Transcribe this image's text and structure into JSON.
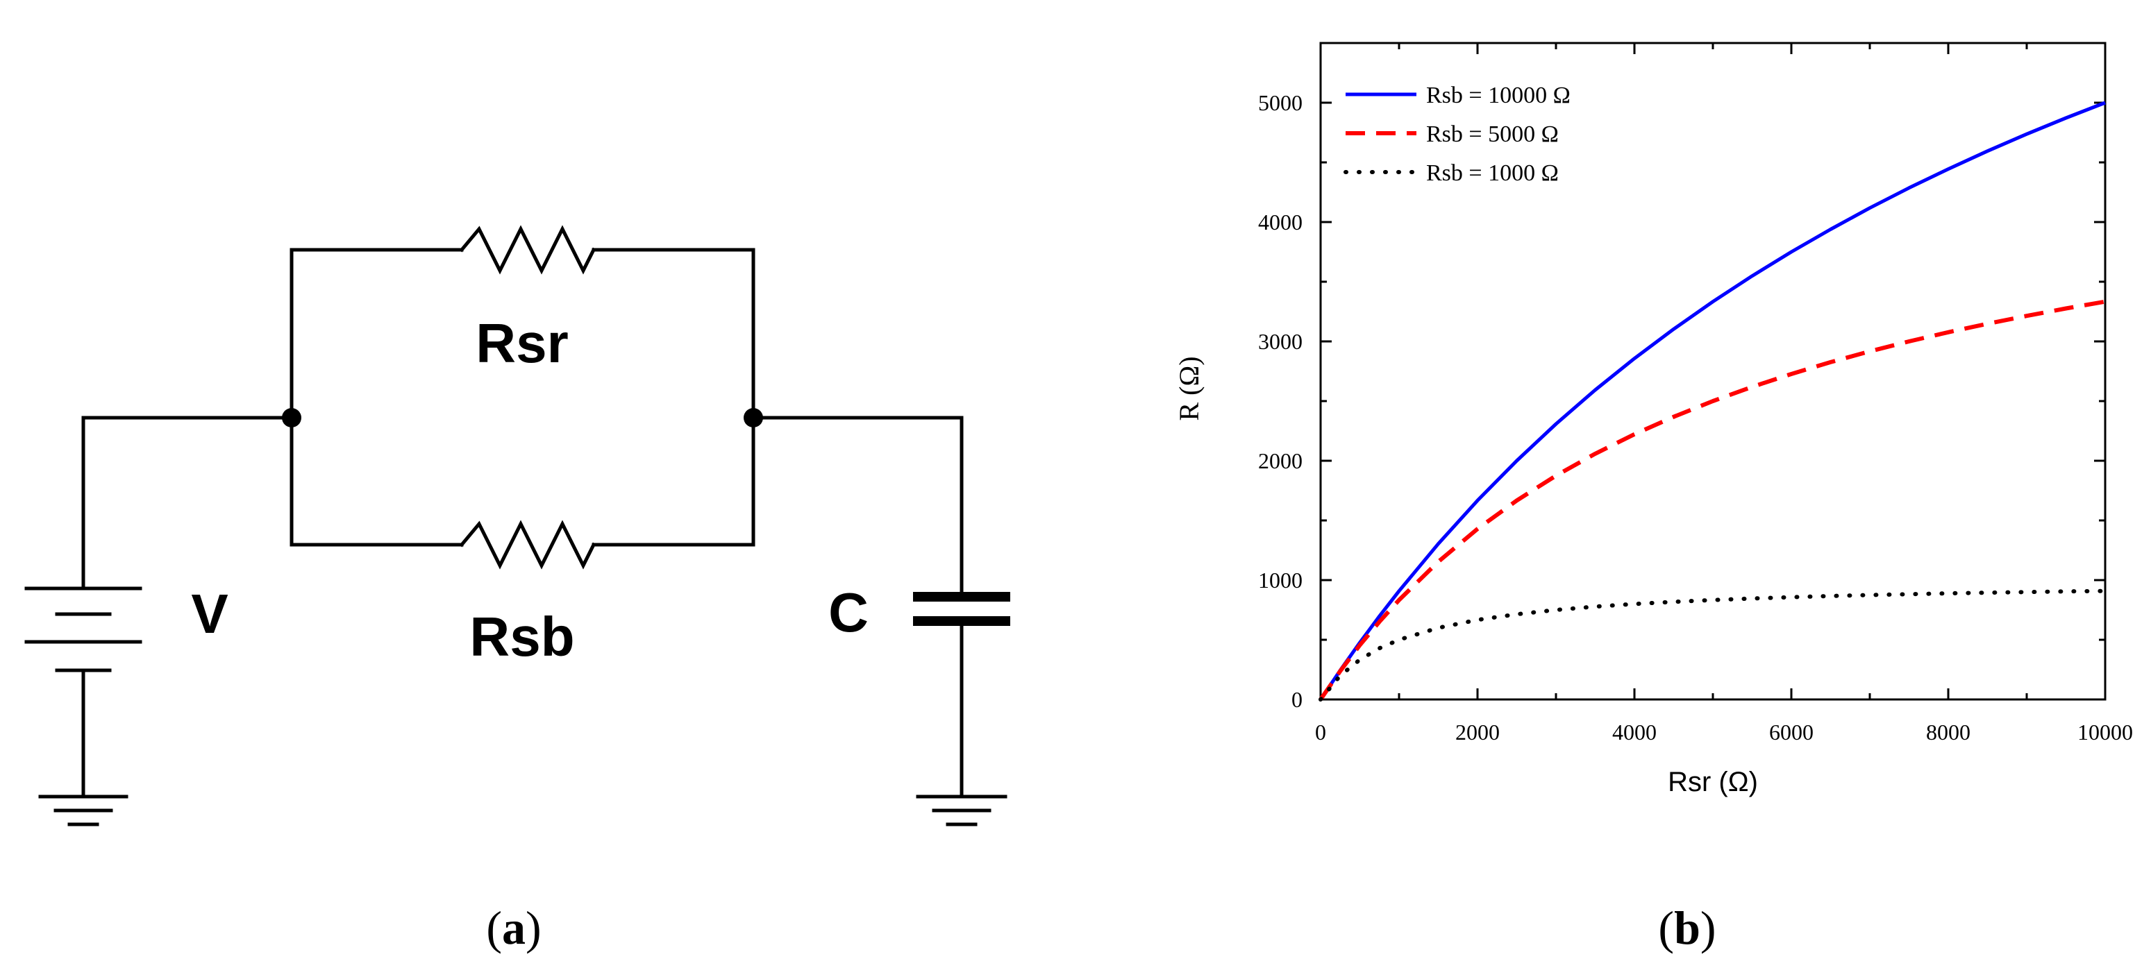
{
  "circuit": {
    "resistor_top_label": "Rsr",
    "resistor_bottom_label": "Rsb",
    "source_label": "V",
    "capacitor_label": "C"
  },
  "captions": {
    "a_open": "(",
    "a_letter": "a",
    "a_close": ")",
    "b_open": "(",
    "b_letter": "b",
    "b_close": ")"
  },
  "chart_data": {
    "type": "line",
    "title": "",
    "xlabel": "Rsr (Ω)",
    "ylabel": "R (Ω)",
    "xlim": [
      0,
      10000
    ],
    "ylim": [
      0,
      5500
    ],
    "x_ticks": [
      0,
      2000,
      4000,
      6000,
      8000,
      10000
    ],
    "y_ticks": [
      0,
      1000,
      2000,
      3000,
      4000,
      5000
    ],
    "grid": false,
    "legend_position": "top-left",
    "x": [
      0,
      250,
      500,
      750,
      1000,
      1500,
      2000,
      2500,
      3000,
      3500,
      4000,
      4500,
      5000,
      5500,
      6000,
      6500,
      7000,
      7500,
      8000,
      8500,
      9000,
      9500,
      10000
    ],
    "series": [
      {
        "name": "Rsb = 10000 Ω",
        "color": "#0000ff",
        "style": "solid",
        "values": [
          0,
          244,
          476,
          698,
          909,
          1304,
          1667,
          2000,
          2308,
          2593,
          2857,
          3103,
          3333,
          3548,
          3750,
          3939,
          4118,
          4286,
          4444,
          4595,
          4737,
          4872,
          5000
        ]
      },
      {
        "name": "Rsb = 5000 Ω",
        "color": "#ff0000",
        "style": "dashed",
        "values": [
          0,
          238,
          455,
          652,
          833,
          1154,
          1429,
          1667,
          1875,
          2059,
          2222,
          2368,
          2500,
          2619,
          2727,
          2826,
          2917,
          3000,
          3077,
          3148,
          3214,
          3276,
          3333
        ]
      },
      {
        "name": "Rsb = 1000 Ω",
        "color": "#000000",
        "style": "dotted",
        "values": [
          0,
          200,
          333,
          429,
          500,
          600,
          667,
          714,
          750,
          778,
          800,
          818,
          833,
          846,
          857,
          867,
          875,
          882,
          889,
          895,
          900,
          905,
          909
        ]
      }
    ]
  }
}
